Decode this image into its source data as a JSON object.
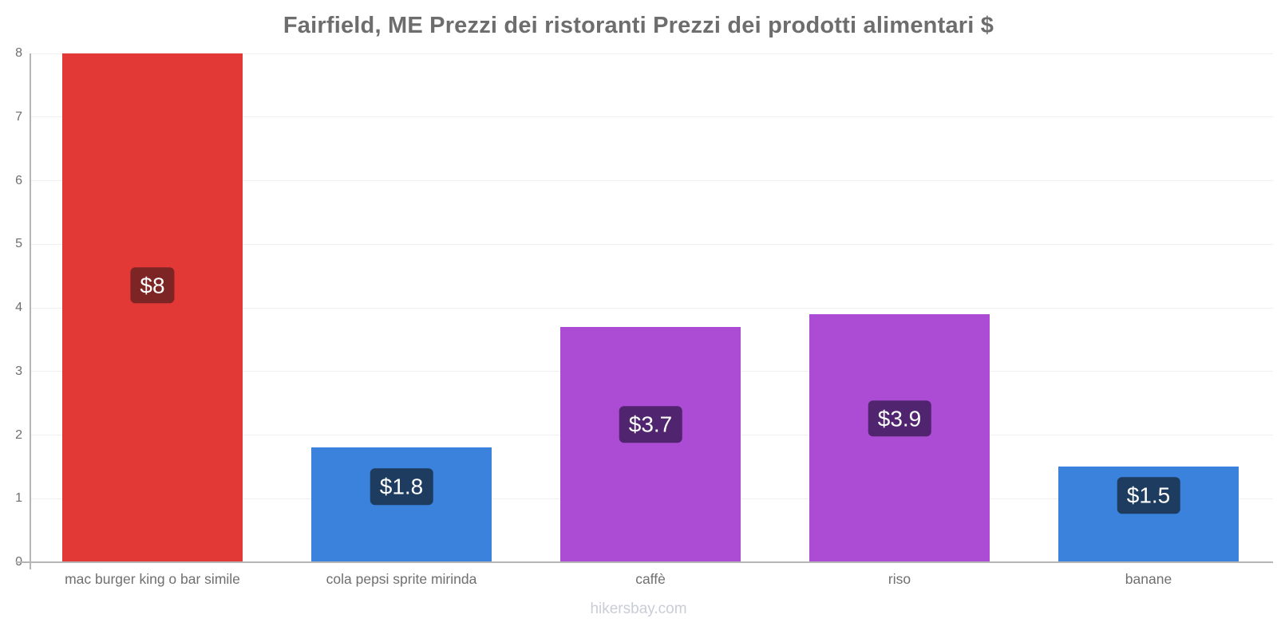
{
  "page": {
    "footer": "hikersbay.com"
  },
  "chart_data": {
    "type": "bar",
    "title": "Fairfield, ME Prezzi dei ristoranti Prezzi dei prodotti alimentari $",
    "categories": [
      "mac burger king o bar simile",
      "cola pepsi sprite mirinda",
      "caffè",
      "riso",
      "banane"
    ],
    "values": [
      8,
      1.8,
      3.7,
      3.9,
      1.5
    ],
    "value_labels": [
      "$8",
      "$1.8",
      "$3.7",
      "$3.9",
      "$1.5"
    ],
    "currency": "$",
    "xlabel": "",
    "ylabel": "",
    "ylim": [
      0,
      8
    ],
    "yticks": [
      0,
      1,
      2,
      3,
      4,
      5,
      6,
      7,
      8
    ],
    "grid": true,
    "legend": "none",
    "bar_colors": [
      "#e23836",
      "#3a82dc",
      "#ac4cd5",
      "#ac4cd5",
      "#3a82dc"
    ],
    "badge_colors": [
      "#7d2524",
      "#1e3c5f",
      "#50246e",
      "#50246e",
      "#1e3c5f"
    ],
    "colors": {
      "title": "#6d6d6d",
      "tick_label": "#6e6e6e",
      "category_label": "#6f6f6f",
      "axis": "#b5b5b5",
      "gridline": "#f0f0f0",
      "watermark": "#c9cdd6",
      "badge_text": "#ffffff",
      "background": "#ffffff"
    }
  }
}
